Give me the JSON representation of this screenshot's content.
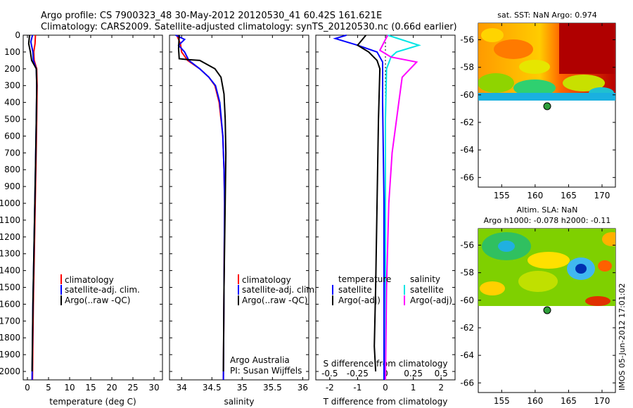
{
  "header": {
    "line1": "Argo profile: CS 7900323_48 30-May-2012 20120530_41 60.42S 161.621E",
    "line2": "Climatology: CARS2009. Satellite-adjusted climatology: synTS_20120530.nc (0.66d earlier)"
  },
  "depth_ticks": [
    0,
    100,
    200,
    300,
    400,
    500,
    600,
    700,
    800,
    900,
    1000,
    1100,
    1200,
    1300,
    1400,
    1500,
    1600,
    1700,
    1800,
    1900,
    2000
  ],
  "colors": {
    "climatology": "#ff0000",
    "satellite": "#0000ff",
    "argo": "#000000",
    "sat_salinity": "#00e5e5",
    "argo_salinity_adj": "#ff00ff"
  },
  "chart_data": [
    {
      "type": "line",
      "id": "temperature",
      "xlabel": "temperature (deg C)",
      "xlim": [
        -1,
        32
      ],
      "ylim": [
        2050,
        0
      ],
      "x_ticks": [
        0,
        5,
        10,
        15,
        20,
        25,
        30
      ],
      "x_tick_labels": [
        "0",
        "5",
        "10",
        "15",
        "20",
        "25",
        "30"
      ],
      "legend": [
        "climatology",
        "satellite-adj. clim.",
        "Argo(..raw -QC)"
      ],
      "series": [
        {
          "name": "climatology",
          "color": "#ff0000",
          "points": [
            [
              1.9,
              0
            ],
            [
              1.8,
              50
            ],
            [
              1.5,
              100
            ],
            [
              1.6,
              150
            ],
            [
              2.2,
              200
            ],
            [
              2.3,
              300
            ],
            [
              2.2,
              500
            ],
            [
              2.0,
              800
            ],
            [
              1.7,
              1200
            ],
            [
              1.4,
              1600
            ],
            [
              1.2,
              2050
            ]
          ]
        },
        {
          "name": "satellite-adj. clim.",
          "color": "#0000ff",
          "points": [
            [
              1.2,
              0
            ],
            [
              0.8,
              40
            ],
            [
              1.3,
              100
            ],
            [
              1.4,
              150
            ],
            [
              2.1,
              200
            ],
            [
              2.2,
              300
            ],
            [
              2.1,
              500
            ],
            [
              1.9,
              800
            ],
            [
              1.6,
              1200
            ],
            [
              1.3,
              1600
            ],
            [
              1.1,
              2050
            ]
          ]
        },
        {
          "name": "Argo(..raw -QC)",
          "color": "#000000",
          "points": [
            [
              0.5,
              0
            ],
            [
              0.3,
              50
            ],
            [
              0.7,
              100
            ],
            [
              1.0,
              150
            ],
            [
              2.1,
              200
            ],
            [
              2.2,
              300
            ],
            [
              2.1,
              500
            ],
            [
              1.9,
              800
            ],
            [
              1.6,
              1200
            ],
            [
              1.3,
              1600
            ],
            [
              1.1,
              2000
            ]
          ]
        }
      ]
    },
    {
      "type": "line",
      "id": "salinity",
      "xlabel": "salinity",
      "xlim": [
        33.8,
        36.1
      ],
      "ylim": [
        2050,
        0
      ],
      "x_ticks": [
        34,
        34.5,
        35,
        35.5,
        36
      ],
      "x_tick_labels": [
        "34",
        "34.5",
        "35",
        "35.5",
        "36"
      ],
      "legend": [
        "climatology",
        "satellite-adj. clim.",
        "Argo(..raw -QC)"
      ],
      "annotations": [
        "Argo Australia",
        "PI: Susan Wijffels"
      ],
      "series": [
        {
          "name": "climatology",
          "color": "#ff0000",
          "points": [
            [
              33.92,
              0
            ],
            [
              33.98,
              50
            ],
            [
              34.0,
              100
            ],
            [
              34.1,
              150
            ],
            [
              34.3,
              200
            ],
            [
              34.45,
              250
            ],
            [
              34.55,
              300
            ],
            [
              34.62,
              400
            ],
            [
              34.68,
              600
            ],
            [
              34.7,
              800
            ],
            [
              34.71,
              1000
            ],
            [
              34.7,
              1500
            ],
            [
              34.69,
              2050
            ]
          ]
        },
        {
          "name": "satellite-adj. clim.",
          "color": "#0000ff",
          "points": [
            [
              33.9,
              0
            ],
            [
              34.05,
              25
            ],
            [
              33.95,
              60
            ],
            [
              34.05,
              100
            ],
            [
              34.12,
              150
            ],
            [
              34.3,
              200
            ],
            [
              34.45,
              250
            ],
            [
              34.56,
              300
            ],
            [
              34.63,
              400
            ],
            [
              34.68,
              600
            ],
            [
              34.7,
              800
            ],
            [
              34.71,
              1000
            ],
            [
              34.7,
              1500
            ],
            [
              34.69,
              2050
            ]
          ]
        },
        {
          "name": "Argo(..raw -QC)",
          "color": "#000000",
          "points": [
            [
              33.96,
              0
            ],
            [
              33.95,
              80
            ],
            [
              33.96,
              140
            ],
            [
              34.1,
              145
            ],
            [
              34.3,
              150
            ],
            [
              34.55,
              200
            ],
            [
              34.65,
              250
            ],
            [
              34.7,
              350
            ],
            [
              34.72,
              500
            ],
            [
              34.73,
              700
            ],
            [
              34.72,
              1000
            ],
            [
              34.7,
              1500
            ],
            [
              34.69,
              2000
            ]
          ]
        }
      ]
    },
    {
      "type": "line",
      "id": "difference",
      "xlabel": "T difference from climatology",
      "xlabel_top": "S difference from climatology",
      "xlim": [
        -2.5,
        2.5
      ],
      "ylim": [
        2050,
        0
      ],
      "x_ticks": [
        -2,
        -1,
        0,
        1,
        2
      ],
      "x_tick_labels": [
        "-2",
        "-1",
        "0",
        "1",
        "2"
      ],
      "s_ticks": [
        -0.5,
        -0.25,
        0,
        0.25,
        0.5
      ],
      "s_tick_labels": [
        "-0.5",
        "-0.25",
        "0",
        "0.25",
        "0.5"
      ],
      "s_xlim": [
        -0.625,
        0.625
      ],
      "legend_groups": [
        {
          "title": "temperature",
          "entries": [
            "satellite",
            "Argo(-adj)"
          ]
        },
        {
          "title": "salinity",
          "entries": [
            "satellite",
            "Argo(-adj)"
          ]
        }
      ],
      "series": [
        {
          "name": "T satellite",
          "color": "#0000ff",
          "points": [
            [
              -1.4,
              0
            ],
            [
              -1.8,
              20
            ],
            [
              -1.0,
              60
            ],
            [
              -0.3,
              100
            ],
            [
              -0.1,
              160
            ],
            [
              -0.1,
              200
            ],
            [
              -0.1,
              400
            ],
            [
              -0.05,
              1000
            ],
            [
              -0.05,
              2050
            ]
          ]
        },
        {
          "name": "T Argo(-adj)",
          "color": "#000000",
          "points": [
            [
              -0.7,
              0
            ],
            [
              -1.0,
              60
            ],
            [
              -0.6,
              100
            ],
            [
              -0.3,
              150
            ],
            [
              -0.2,
              200
            ],
            [
              -0.25,
              500
            ],
            [
              -0.3,
              1000
            ],
            [
              -0.35,
              1500
            ],
            [
              -0.4,
              1850
            ],
            [
              -0.35,
              2000
            ]
          ]
        },
        {
          "name": "S satellite",
          "color": "#00e5e5",
          "points": [
            [
              0.02,
              0
            ],
            [
              0.3,
              60
            ],
            [
              0.1,
              100
            ],
            [
              0.05,
              130
            ],
            [
              0.01,
              200
            ],
            [
              0.0,
              500
            ],
            [
              0.0,
              2050
            ]
          ]
        },
        {
          "name": "S Argo(-adj)",
          "color": "#ff00ff",
          "points": [
            [
              0.02,
              0
            ],
            [
              -0.05,
              90
            ],
            [
              0.05,
              130
            ],
            [
              0.28,
              160
            ],
            [
              0.15,
              250
            ],
            [
              0.12,
              400
            ],
            [
              0.06,
              700
            ],
            [
              0.03,
              1000
            ],
            [
              0.01,
              1500
            ],
            [
              0.0,
              2050
            ]
          ]
        }
      ]
    },
    {
      "type": "heatmap",
      "id": "sst_map",
      "title": "sat. SST: NaN Argo: 0.974",
      "x_tick_labels": [
        "155",
        "160",
        "165",
        "170"
      ],
      "y_tick_labels": [
        "-56",
        "-58",
        "-60",
        "-62",
        "-64",
        "-66"
      ],
      "x": [
        155,
        160,
        165,
        170
      ],
      "y": [
        -56,
        -58,
        -60,
        -62,
        -64,
        -66
      ],
      "argo_position": [
        161.621,
        -60.42
      ]
    },
    {
      "type": "heatmap",
      "id": "sla_map",
      "title": "Altim. SLA: NaN",
      "subtitle": "Argo h1000: -0.078 h2000: -0.11",
      "x_tick_labels": [
        "155",
        "160",
        "165",
        "170"
      ],
      "y_tick_labels": [
        "-56",
        "-58",
        "-60",
        "-62",
        "-64",
        "-66"
      ],
      "x": [
        155,
        160,
        165,
        170
      ],
      "y": [
        -56,
        -58,
        -60,
        -62,
        -64,
        -66
      ],
      "argo_position": [
        161.621,
        -60.42
      ]
    }
  ],
  "footer_stamp": "IMOS 05-Jun-2012 17:01:02"
}
